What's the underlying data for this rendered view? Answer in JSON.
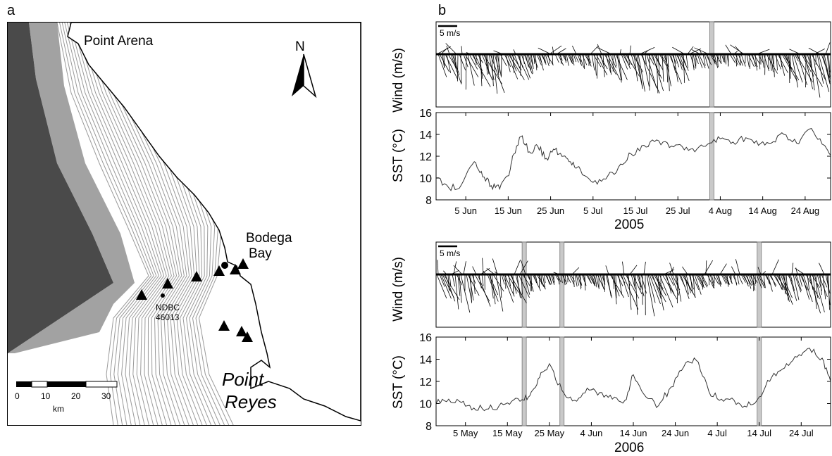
{
  "panels": {
    "a": {
      "letter": "a",
      "places": {
        "point_arena": "Point Arena",
        "bodega_bay_1": "Bodega",
        "bodega_bay_2": "Bay",
        "point_reyes_1": "Point",
        "point_reyes_2": "Reyes"
      },
      "buoy": {
        "line1": "NDBC",
        "line2": "46013"
      },
      "north": "N",
      "scalebar": {
        "ticks": [
          "0",
          "10",
          "20",
          "30"
        ],
        "unit": "km"
      },
      "stations_count_visible": 10
    },
    "b": {
      "letter": "b"
    }
  },
  "colors": {
    "ink": "#000000",
    "contour": "#9a9a9a",
    "shade": "#c9c9c9",
    "land": "#ffffff"
  },
  "chart_data": [
    {
      "type": "line",
      "year": "2005",
      "title": "",
      "wind": {
        "ylabel": "Wind (m/s)",
        "scale_label": "5 m/s"
      },
      "ylabel": "SST (°C)",
      "ylim": [
        8,
        16
      ],
      "yticks": [
        "16",
        "14",
        "12",
        "10",
        "8"
      ],
      "xlim": [
        "2005-05-29",
        "2005-08-30"
      ],
      "xticks": [
        "5 Jun",
        "15 Jun",
        "25 Jun",
        "5 Jul",
        "15 Jul",
        "25 Jul",
        "4 Aug",
        "14 Aug",
        "24 Aug"
      ],
      "highlight_dates": [
        "2005-08-02"
      ],
      "series": [
        {
          "x": [
            "2005-05-29",
            "2005-06-01",
            "2005-06-04",
            "2005-06-07",
            "2005-06-09",
            "2005-06-11",
            "2005-06-13",
            "2005-06-15",
            "2005-06-16",
            "2005-06-18",
            "2005-06-20",
            "2005-06-22",
            "2005-06-24",
            "2005-06-26",
            "2005-06-28",
            "2005-06-30",
            "2005-07-02",
            "2005-07-05",
            "2005-07-08",
            "2005-07-11",
            "2005-07-14",
            "2005-07-17",
            "2005-07-20",
            "2005-07-23",
            "2005-07-26",
            "2005-07-29",
            "2005-08-01",
            "2005-08-04",
            "2005-08-07",
            "2005-08-10",
            "2005-08-13",
            "2005-08-16",
            "2005-08-19",
            "2005-08-22",
            "2005-08-25",
            "2005-08-28",
            "2005-08-30"
          ],
          "y": [
            10.0,
            9.1,
            9.4,
            11.5,
            10.1,
            9.3,
            9.0,
            10.2,
            12.0,
            13.8,
            12.4,
            12.9,
            11.8,
            12.6,
            12.0,
            11.2,
            10.8,
            9.6,
            9.9,
            11.0,
            12.2,
            13.0,
            13.5,
            12.8,
            12.9,
            12.4,
            13.1,
            13.6,
            13.3,
            13.7,
            13.0,
            13.2,
            14.0,
            13.2,
            14.5,
            13.1,
            12.1
          ]
        }
      ]
    },
    {
      "type": "line",
      "year": "2006",
      "title": "",
      "wind": {
        "ylabel": "Wind (m/s)",
        "scale_label": "5 m/s"
      },
      "ylabel": "SST (°C)",
      "ylim": [
        8,
        16
      ],
      "yticks": [
        "16",
        "14",
        "12",
        "10",
        "8"
      ],
      "xlim": [
        "2006-04-28",
        "2006-07-31"
      ],
      "xticks": [
        "5 May",
        "15 May",
        "25 May",
        "4 Jun",
        "14 Jun",
        "24 Jun",
        "4 Jul",
        "14 Jul",
        "24 Jul"
      ],
      "highlight_dates": [
        "2006-05-19",
        "2006-05-28",
        "2006-07-14"
      ],
      "series": [
        {
          "x": [
            "2006-04-28",
            "2006-05-01",
            "2006-05-04",
            "2006-05-07",
            "2006-05-10",
            "2006-05-13",
            "2006-05-16",
            "2006-05-19",
            "2006-05-21",
            "2006-05-23",
            "2006-05-25",
            "2006-05-28",
            "2006-05-31",
            "2006-06-03",
            "2006-06-06",
            "2006-06-09",
            "2006-06-12",
            "2006-06-14",
            "2006-06-17",
            "2006-06-20",
            "2006-06-23",
            "2006-06-26",
            "2006-06-29",
            "2006-07-02",
            "2006-07-05",
            "2006-07-08",
            "2006-07-11",
            "2006-07-14",
            "2006-07-17",
            "2006-07-20",
            "2006-07-23",
            "2006-07-26",
            "2006-07-29",
            "2006-07-31"
          ],
          "y": [
            10.0,
            10.4,
            10.1,
            9.6,
            9.5,
            9.8,
            10.2,
            10.3,
            11.2,
            12.8,
            13.6,
            11.2,
            10.3,
            11.4,
            11.0,
            10.4,
            10.3,
            12.6,
            10.6,
            9.8,
            11.5,
            13.3,
            13.9,
            11.1,
            10.4,
            10.3,
            9.7,
            10.6,
            12.4,
            13.2,
            14.2,
            15.0,
            14.1,
            12.0
          ]
        }
      ]
    }
  ]
}
